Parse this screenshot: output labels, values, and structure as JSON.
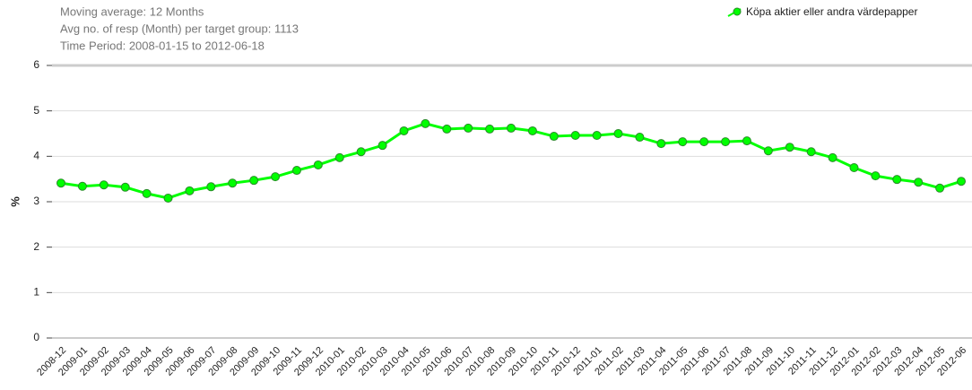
{
  "chart_data": {
    "type": "line",
    "subtitle": [
      "Moving average: 12 Months",
      "Avg no. of resp (Month) per target group: 1113",
      "Time Period: 2008-01-15 to 2012-06-18"
    ],
    "ylabel": "%",
    "categories": [
      "2008-12",
      "2009-01",
      "2009-02",
      "2009-03",
      "2009-04",
      "2009-05",
      "2009-06",
      "2009-07",
      "2009-08",
      "2009-09",
      "2009-10",
      "2009-11",
      "2009-12",
      "2010-01",
      "2010-02",
      "2010-03",
      "2010-04",
      "2010-05",
      "2010-06",
      "2010-07",
      "2010-08",
      "2010-09",
      "2010-10",
      "2010-11",
      "2010-12",
      "2011-01",
      "2011-02",
      "2011-03",
      "2011-04",
      "2011-05",
      "2011-06",
      "2011-07",
      "2011-08",
      "2011-09",
      "2011-10",
      "2011-11",
      "2011-12",
      "2012-01",
      "2012-02",
      "2012-03",
      "2012-04",
      "2012-05",
      "2012-06"
    ],
    "series": [
      {
        "name": "Köpa aktier eller andra värdepapper",
        "color": "#00ff00",
        "values": [
          3.41,
          3.34,
          3.37,
          3.32,
          3.18,
          3.08,
          3.24,
          3.33,
          3.41,
          3.47,
          3.55,
          3.69,
          3.81,
          3.97,
          4.1,
          4.24,
          4.56,
          4.72,
          4.6,
          4.62,
          4.6,
          4.62,
          4.56,
          4.44,
          4.46,
          4.46,
          4.5,
          4.42,
          4.28,
          4.32,
          4.32,
          4.32,
          4.34,
          4.12,
          4.2,
          4.1,
          3.97,
          3.75,
          3.57,
          3.49,
          3.43,
          3.3,
          3.45
        ]
      }
    ],
    "ylim": [
      0,
      6
    ],
    "yticks": [
      0,
      1,
      2,
      3,
      4,
      5,
      6
    ],
    "grid": true,
    "legend": "top-right"
  }
}
